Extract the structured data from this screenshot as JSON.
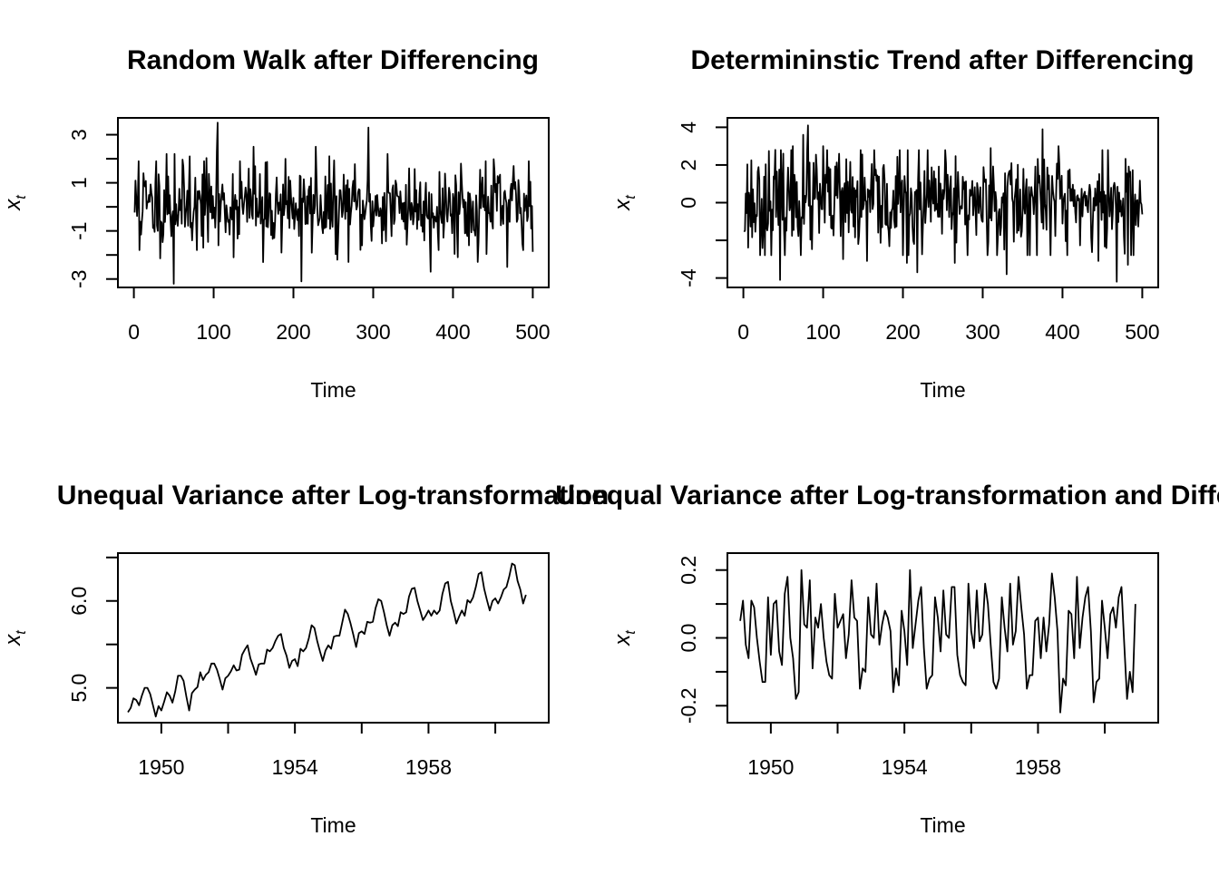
{
  "chart_data": [
    {
      "type": "line",
      "title": "Random Walk after Differencing",
      "xlabel": "Time",
      "ylabel": "x",
      "ylabel_sub": "t",
      "xlim": [
        -20,
        520
      ],
      "ylim": [
        -3.35,
        3.7
      ],
      "xticks": [
        0,
        100,
        200,
        300,
        400,
        500
      ],
      "yticks": [
        -3,
        -2,
        -1,
        0,
        1,
        2,
        3
      ],
      "ytick_labels": [
        "-3",
        "",
        "-1",
        "",
        "1",
        "",
        "3"
      ],
      "n_points": 500,
      "x_start": 1,
      "spikes": [
        [
          6,
          1.9
        ],
        [
          7,
          -1.8
        ],
        [
          12,
          1.4
        ],
        [
          28,
          1.9
        ],
        [
          41,
          2.2
        ],
        [
          50,
          -3.2
        ],
        [
          51,
          2.2
        ],
        [
          70,
          2.1
        ],
        [
          79,
          -1.8
        ],
        [
          88,
          1.9
        ],
        [
          105,
          3.5
        ],
        [
          106,
          -1.6
        ],
        [
          133,
          1.9
        ],
        [
          150,
          2.5
        ],
        [
          162,
          -2.3
        ],
        [
          190,
          2.0
        ],
        [
          210,
          -3.1
        ],
        [
          228,
          2.5
        ],
        [
          255,
          -2.2
        ],
        [
          286,
          -1.6
        ],
        [
          294,
          3.3
        ],
        [
          318,
          2.2
        ],
        [
          345,
          1.6
        ],
        [
          372,
          -2.7
        ],
        [
          410,
          1.8
        ],
        [
          420,
          -1.6
        ],
        [
          441,
          1.9
        ],
        [
          468,
          -2.5
        ],
        [
          476,
          1.7
        ],
        [
          488,
          -1.8
        ],
        [
          495,
          1.9
        ]
      ],
      "amplitude": 0.85,
      "seed": 11
    },
    {
      "type": "line",
      "title": "Determininstic Trend after Differencing",
      "xlabel": "Time",
      "ylabel": "x",
      "ylabel_sub": "t",
      "xlim": [
        -20,
        520
      ],
      "ylim": [
        -4.5,
        4.5
      ],
      "xticks": [
        0,
        100,
        200,
        300,
        400,
        500
      ],
      "yticks": [
        -4,
        -2,
        0,
        2,
        4
      ],
      "ytick_labels": [
        "-4",
        "",
        "0",
        "2",
        "4"
      ],
      "n_points": 500,
      "x_start": 1,
      "spikes": [
        [
          40,
          -3.8
        ],
        [
          46,
          -4.1
        ],
        [
          75,
          3.6
        ],
        [
          81,
          4.1
        ],
        [
          62,
          3.0
        ],
        [
          125,
          -3.0
        ],
        [
          155,
          -3.1
        ],
        [
          205,
          -3.2
        ],
        [
          218,
          -3.7
        ],
        [
          265,
          -3.2
        ],
        [
          330,
          -3.8
        ],
        [
          375,
          3.9
        ],
        [
          395,
          3.0
        ],
        [
          445,
          -3.1
        ],
        [
          468,
          -4.2
        ],
        [
          482,
          -3.3
        ],
        [
          40,
          2.8
        ],
        [
          100,
          3.0
        ],
        [
          310,
          2.9
        ]
      ],
      "amplitude": 1.4,
      "seed": 23
    },
    {
      "type": "line",
      "title": "Unequal Variance after Log-transformation",
      "xlabel": "Time",
      "ylabel": "x",
      "ylabel_sub": "t",
      "xlim": [
        1948.7,
        1961.6
      ],
      "ylim": [
        4.6,
        6.55
      ],
      "xticks": [
        1950,
        1952,
        1954,
        1956,
        1958,
        1960
      ],
      "xtick_labels": [
        "1950",
        "",
        "1954",
        "",
        "1958",
        ""
      ],
      "yticks": [
        5.0,
        5.5,
        6.0,
        6.5
      ],
      "ytick_labels": [
        "5.0",
        "",
        "6.0",
        ""
      ],
      "start": 1949,
      "frequency": 12,
      "values": [
        4.72,
        4.77,
        4.88,
        4.86,
        4.8,
        4.91,
        5.0,
        5.0,
        4.93,
        4.8,
        4.67,
        4.79,
        4.74,
        4.84,
        4.95,
        4.91,
        4.83,
        4.96,
        5.14,
        5.14,
        5.08,
        4.9,
        4.74,
        4.94,
        4.98,
        5.01,
        5.18,
        5.09,
        5.15,
        5.18,
        5.28,
        5.28,
        5.21,
        5.1,
        4.98,
        5.11,
        5.14,
        5.19,
        5.26,
        5.2,
        5.21,
        5.38,
        5.44,
        5.49,
        5.34,
        5.25,
        5.15,
        5.27,
        5.28,
        5.28,
        5.44,
        5.42,
        5.46,
        5.54,
        5.6,
        5.62,
        5.46,
        5.37,
        5.23,
        5.31,
        5.33,
        5.25,
        5.45,
        5.42,
        5.46,
        5.57,
        5.72,
        5.69,
        5.54,
        5.42,
        5.31,
        5.43,
        5.49,
        5.45,
        5.59,
        5.6,
        5.6,
        5.75,
        5.9,
        5.85,
        5.74,
        5.61,
        5.47,
        5.63,
        5.65,
        5.62,
        5.76,
        5.75,
        5.76,
        5.92,
        6.02,
        6.0,
        5.87,
        5.72,
        5.6,
        5.72,
        5.75,
        5.71,
        5.87,
        5.85,
        5.87,
        6.05,
        6.14,
        6.15,
        6.0,
        5.89,
        5.78,
        5.83,
        5.89,
        5.83,
        5.89,
        5.85,
        5.89,
        6.08,
        6.2,
        6.22,
        6.0,
        5.88,
        5.74,
        5.82,
        5.89,
        5.83,
        6.01,
        5.98,
        6.04,
        6.16,
        6.31,
        6.33,
        6.14,
        6.01,
        5.89,
        6.0,
        6.03,
        5.97,
        6.04,
        6.13,
        6.16,
        6.28,
        6.43,
        6.41,
        6.23,
        6.13,
        5.97,
        6.07
      ]
    },
    {
      "type": "line",
      "title": "Unequal Variance after Log-transformation and Differencing",
      "xlabel": "Time",
      "ylabel": "x",
      "ylabel_sub": "t",
      "xlim": [
        1948.7,
        1961.6
      ],
      "ylim": [
        -0.25,
        0.25
      ],
      "xticks": [
        1950,
        1952,
        1954,
        1956,
        1958,
        1960
      ],
      "xtick_labels": [
        "1950",
        "",
        "1954",
        "",
        "1958",
        ""
      ],
      "yticks": [
        -0.2,
        -0.1,
        0.0,
        0.1,
        0.2
      ],
      "ytick_labels": [
        "-0.2",
        "",
        "0.0",
        "",
        "0.2"
      ],
      "start": 1949.0833,
      "frequency": 12,
      "derive_from_previous": true
    }
  ]
}
